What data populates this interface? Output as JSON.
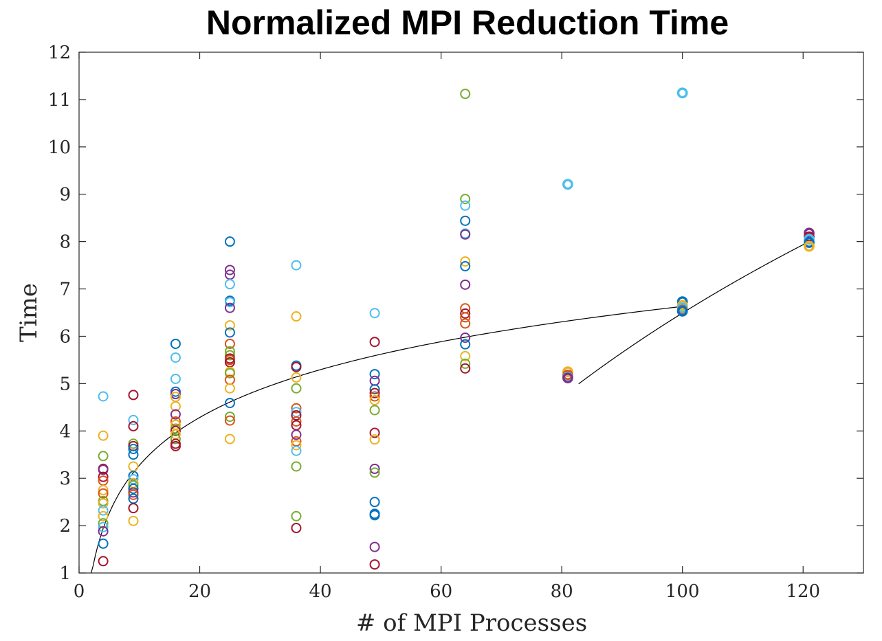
{
  "chart_data": {
    "type": "scatter",
    "title": "Normalized MPI Reduction Time",
    "xlabel": "# of MPI Processes",
    "ylabel": "Time",
    "xlim": [
      0,
      130
    ],
    "ylim": [
      1,
      12
    ],
    "xticks": [
      0,
      20,
      40,
      60,
      80,
      100,
      120
    ],
    "yticks": [
      1,
      2,
      3,
      4,
      5,
      6,
      7,
      8,
      9,
      10,
      11,
      12
    ],
    "grid": false,
    "box": true,
    "marker": "open-circle",
    "colors": [
      "#0072BD",
      "#D95319",
      "#EDB120",
      "#7E2F8E",
      "#77AC30",
      "#4DBEEE",
      "#A2142F"
    ],
    "points": [
      {
        "x": 4,
        "y": 4.73,
        "c": 5
      },
      {
        "x": 4,
        "y": 3.9,
        "c": 2
      },
      {
        "x": 4,
        "y": 3.47,
        "c": 4
      },
      {
        "x": 4,
        "y": 3.2,
        "c": 6
      },
      {
        "x": 4,
        "y": 3.18,
        "c": 3
      },
      {
        "x": 4,
        "y": 3.03,
        "c": 6
      },
      {
        "x": 4,
        "y": 2.95,
        "c": 1
      },
      {
        "x": 4,
        "y": 2.75,
        "c": 2
      },
      {
        "x": 4,
        "y": 2.68,
        "c": 1
      },
      {
        "x": 4,
        "y": 2.52,
        "c": 4
      },
      {
        "x": 4,
        "y": 2.47,
        "c": 2
      },
      {
        "x": 4,
        "y": 2.32,
        "c": 5
      },
      {
        "x": 4,
        "y": 2.2,
        "c": 2
      },
      {
        "x": 4,
        "y": 2.05,
        "c": 4
      },
      {
        "x": 4,
        "y": 1.97,
        "c": 5
      },
      {
        "x": 4,
        "y": 1.88,
        "c": 3
      },
      {
        "x": 4,
        "y": 1.62,
        "c": 0
      },
      {
        "x": 4,
        "y": 1.25,
        "c": 6
      },
      {
        "x": 9,
        "y": 4.76,
        "c": 6
      },
      {
        "x": 9,
        "y": 4.23,
        "c": 5
      },
      {
        "x": 9,
        "y": 4.1,
        "c": 6
      },
      {
        "x": 9,
        "y": 3.73,
        "c": 4
      },
      {
        "x": 9,
        "y": 3.68,
        "c": 6
      },
      {
        "x": 9,
        "y": 3.62,
        "c": 0
      },
      {
        "x": 9,
        "y": 3.5,
        "c": 0
      },
      {
        "x": 9,
        "y": 3.25,
        "c": 2
      },
      {
        "x": 9,
        "y": 3.05,
        "c": 0
      },
      {
        "x": 9,
        "y": 2.98,
        "c": 5
      },
      {
        "x": 9,
        "y": 2.9,
        "c": 2
      },
      {
        "x": 9,
        "y": 2.85,
        "c": 4
      },
      {
        "x": 9,
        "y": 2.78,
        "c": 0
      },
      {
        "x": 9,
        "y": 2.7,
        "c": 3
      },
      {
        "x": 9,
        "y": 2.65,
        "c": 1
      },
      {
        "x": 9,
        "y": 2.57,
        "c": 0
      },
      {
        "x": 9,
        "y": 2.37,
        "c": 6
      },
      {
        "x": 9,
        "y": 2.1,
        "c": 2
      },
      {
        "x": 16,
        "y": 5.84,
        "c": 0
      },
      {
        "x": 16,
        "y": 5.55,
        "c": 5
      },
      {
        "x": 16,
        "y": 5.1,
        "c": 5
      },
      {
        "x": 16,
        "y": 4.83,
        "c": 0
      },
      {
        "x": 16,
        "y": 4.78,
        "c": 3
      },
      {
        "x": 16,
        "y": 4.72,
        "c": 2
      },
      {
        "x": 16,
        "y": 4.52,
        "c": 2
      },
      {
        "x": 16,
        "y": 4.35,
        "c": 3
      },
      {
        "x": 16,
        "y": 4.2,
        "c": 1
      },
      {
        "x": 16,
        "y": 4.13,
        "c": 2
      },
      {
        "x": 16,
        "y": 4.05,
        "c": 4
      },
      {
        "x": 16,
        "y": 4.0,
        "c": 6
      },
      {
        "x": 16,
        "y": 3.93,
        "c": 2
      },
      {
        "x": 16,
        "y": 3.83,
        "c": 4
      },
      {
        "x": 16,
        "y": 3.73,
        "c": 6
      },
      {
        "x": 16,
        "y": 3.68,
        "c": 6
      },
      {
        "x": 25,
        "y": 8.0,
        "c": 0
      },
      {
        "x": 25,
        "y": 7.4,
        "c": 3
      },
      {
        "x": 25,
        "y": 7.3,
        "c": 3
      },
      {
        "x": 25,
        "y": 7.1,
        "c": 5
      },
      {
        "x": 25,
        "y": 6.75,
        "c": 0
      },
      {
        "x": 25,
        "y": 6.72,
        "c": 5
      },
      {
        "x": 25,
        "y": 6.6,
        "c": 3
      },
      {
        "x": 25,
        "y": 6.23,
        "c": 2
      },
      {
        "x": 25,
        "y": 6.08,
        "c": 0
      },
      {
        "x": 25,
        "y": 5.84,
        "c": 1
      },
      {
        "x": 25,
        "y": 5.68,
        "c": 4
      },
      {
        "x": 25,
        "y": 5.6,
        "c": 4
      },
      {
        "x": 25,
        "y": 5.53,
        "c": 6
      },
      {
        "x": 25,
        "y": 5.5,
        "c": 1
      },
      {
        "x": 25,
        "y": 5.45,
        "c": 6
      },
      {
        "x": 25,
        "y": 5.25,
        "c": 2
      },
      {
        "x": 25,
        "y": 5.22,
        "c": 4
      },
      {
        "x": 25,
        "y": 5.08,
        "c": 1
      },
      {
        "x": 25,
        "y": 4.9,
        "c": 2
      },
      {
        "x": 25,
        "y": 4.59,
        "c": 0
      },
      {
        "x": 25,
        "y": 4.3,
        "c": 4
      },
      {
        "x": 25,
        "y": 4.22,
        "c": 1
      },
      {
        "x": 25,
        "y": 3.83,
        "c": 2
      },
      {
        "x": 36,
        "y": 7.5,
        "c": 5
      },
      {
        "x": 36,
        "y": 6.42,
        "c": 2
      },
      {
        "x": 36,
        "y": 5.38,
        "c": 0
      },
      {
        "x": 36,
        "y": 5.35,
        "c": 6
      },
      {
        "x": 36,
        "y": 5.13,
        "c": 2
      },
      {
        "x": 36,
        "y": 4.9,
        "c": 4
      },
      {
        "x": 36,
        "y": 4.48,
        "c": 1
      },
      {
        "x": 36,
        "y": 4.4,
        "c": 5
      },
      {
        "x": 36,
        "y": 4.33,
        "c": 6
      },
      {
        "x": 36,
        "y": 4.2,
        "c": 1
      },
      {
        "x": 36,
        "y": 4.12,
        "c": 6
      },
      {
        "x": 36,
        "y": 3.92,
        "c": 3
      },
      {
        "x": 36,
        "y": 3.78,
        "c": 1
      },
      {
        "x": 36,
        "y": 3.7,
        "c": 2
      },
      {
        "x": 36,
        "y": 3.58,
        "c": 5
      },
      {
        "x": 36,
        "y": 3.25,
        "c": 4
      },
      {
        "x": 36,
        "y": 2.2,
        "c": 4
      },
      {
        "x": 36,
        "y": 1.95,
        "c": 6
      },
      {
        "x": 49,
        "y": 6.49,
        "c": 5
      },
      {
        "x": 49,
        "y": 5.88,
        "c": 6
      },
      {
        "x": 49,
        "y": 5.2,
        "c": 0
      },
      {
        "x": 49,
        "y": 5.06,
        "c": 3
      },
      {
        "x": 49,
        "y": 4.88,
        "c": 0
      },
      {
        "x": 49,
        "y": 4.8,
        "c": 6
      },
      {
        "x": 49,
        "y": 4.73,
        "c": 1
      },
      {
        "x": 49,
        "y": 4.65,
        "c": 2
      },
      {
        "x": 49,
        "y": 4.44,
        "c": 4
      },
      {
        "x": 49,
        "y": 3.96,
        "c": 6
      },
      {
        "x": 49,
        "y": 3.82,
        "c": 2
      },
      {
        "x": 49,
        "y": 3.2,
        "c": 3
      },
      {
        "x": 49,
        "y": 3.12,
        "c": 4
      },
      {
        "x": 49,
        "y": 2.5,
        "c": 0
      },
      {
        "x": 49,
        "y": 2.25,
        "c": 0
      },
      {
        "x": 49,
        "y": 2.22,
        "c": 0
      },
      {
        "x": 49,
        "y": 1.55,
        "c": 3
      },
      {
        "x": 49,
        "y": 1.18,
        "c": 6
      },
      {
        "x": 64,
        "y": 11.12,
        "c": 4
      },
      {
        "x": 64,
        "y": 8.9,
        "c": 4
      },
      {
        "x": 64,
        "y": 8.76,
        "c": 5
      },
      {
        "x": 64,
        "y": 8.44,
        "c": 0
      },
      {
        "x": 64,
        "y": 8.17,
        "c": 5
      },
      {
        "x": 64,
        "y": 8.15,
        "c": 3
      },
      {
        "x": 64,
        "y": 7.58,
        "c": 2
      },
      {
        "x": 64,
        "y": 7.48,
        "c": 0
      },
      {
        "x": 64,
        "y": 7.09,
        "c": 3
      },
      {
        "x": 64,
        "y": 6.59,
        "c": 1
      },
      {
        "x": 64,
        "y": 6.48,
        "c": 6
      },
      {
        "x": 64,
        "y": 6.4,
        "c": 1
      },
      {
        "x": 64,
        "y": 6.27,
        "c": 1
      },
      {
        "x": 64,
        "y": 5.97,
        "c": 3
      },
      {
        "x": 64,
        "y": 5.83,
        "c": 0
      },
      {
        "x": 64,
        "y": 5.58,
        "c": 2
      },
      {
        "x": 64,
        "y": 5.42,
        "c": 4
      },
      {
        "x": 64,
        "y": 5.32,
        "c": 6
      },
      {
        "x": 81,
        "y": 9.21,
        "c": 5,
        "b": 1
      },
      {
        "x": 81,
        "y": 5.25,
        "c": 2,
        "b": 1
      },
      {
        "x": 81,
        "y": 5.18,
        "c": 1,
        "b": 1
      },
      {
        "x": 81,
        "y": 5.14,
        "c": 5,
        "b": 1
      },
      {
        "x": 81,
        "y": 5.12,
        "c": 3,
        "b": 1
      },
      {
        "x": 100,
        "y": 11.14,
        "c": 5,
        "b": 1
      },
      {
        "x": 100,
        "y": 6.73,
        "c": 0,
        "b": 1
      },
      {
        "x": 100,
        "y": 6.65,
        "c": 2,
        "b": 1
      },
      {
        "x": 100,
        "y": 6.6,
        "c": 5,
        "b": 1
      },
      {
        "x": 100,
        "y": 6.55,
        "c": 1,
        "b": 1
      },
      {
        "x": 100,
        "y": 6.53,
        "c": 0,
        "b": 1
      },
      {
        "x": 121,
        "y": 8.18,
        "c": 3,
        "b": 1
      },
      {
        "x": 121,
        "y": 8.1,
        "c": 6,
        "b": 1
      },
      {
        "x": 121,
        "y": 8.05,
        "c": 5,
        "b": 1
      },
      {
        "x": 121,
        "y": 7.98,
        "c": 0,
        "b": 1
      },
      {
        "x": 121,
        "y": 7.9,
        "c": 2,
        "b": 1
      }
    ],
    "fit_lines": [
      {
        "kind": "log",
        "x_from": 2,
        "x_to": 100,
        "through": [
          [
            4,
            1.94
          ],
          [
            100,
            6.63
          ]
        ]
      },
      {
        "kind": "log",
        "x_from": 82.8,
        "x_to": 121,
        "through": [
          [
            100,
            6.49
          ],
          [
            121,
            8.0
          ]
        ],
        "y_floor": 1
      }
    ]
  }
}
